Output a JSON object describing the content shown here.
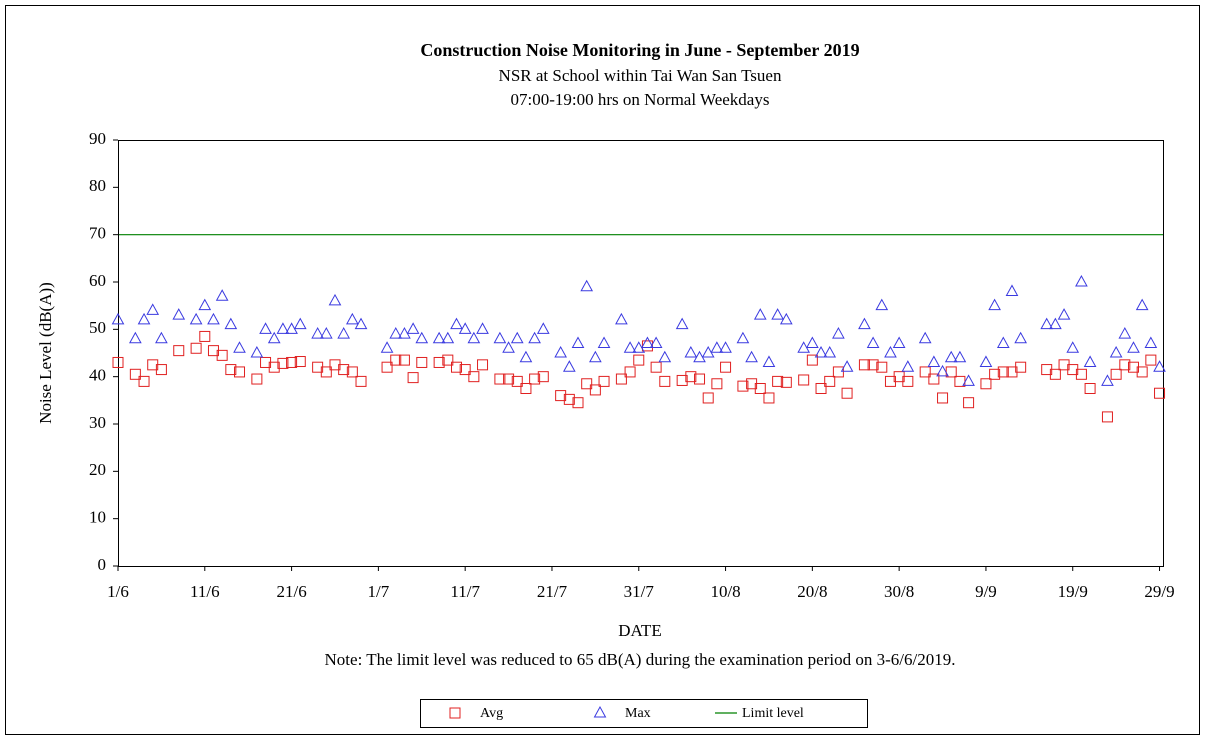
{
  "chart_data": {
    "type": "scatter",
    "title": "Construction  Noise Monitoring  in June - September 2019",
    "subtitle": [
      "NSR at School within Tai Wan San Tsuen",
      "07:00-19:00 hrs on Normal Weekdays"
    ],
    "x_label": "DATE",
    "y_label": "Noise Level (dB(A))",
    "note": "Note:  The limit level was reduced to 65 dB(A) during the examination period on 3-6/6/2019.",
    "xlim": [
      0,
      120.4
    ],
    "xticks": [
      {
        "value": 0,
        "label": "1/6"
      },
      {
        "value": 10,
        "label": "11/6"
      },
      {
        "value": 20,
        "label": "21/6"
      },
      {
        "value": 30,
        "label": "1/7"
      },
      {
        "value": 40,
        "label": "11/7"
      },
      {
        "value": 50,
        "label": "21/7"
      },
      {
        "value": 60,
        "label": "31/7"
      },
      {
        "value": 70,
        "label": "10/8"
      },
      {
        "value": 80,
        "label": "20/8"
      },
      {
        "value": 90,
        "label": "30/8"
      },
      {
        "value": 100,
        "label": "9/9"
      },
      {
        "value": 110,
        "label": "19/9"
      },
      {
        "value": 120,
        "label": "29/9"
      }
    ],
    "ylim": [
      0,
      90
    ],
    "yticks": [
      0,
      10,
      20,
      30,
      40,
      50,
      60,
      70,
      80,
      90
    ],
    "x": [
      0,
      2,
      3,
      4,
      5,
      7,
      9,
      10,
      11,
      12,
      13,
      14,
      16,
      17,
      18,
      19,
      20,
      21,
      23,
      24,
      25,
      26,
      27,
      28,
      31,
      32,
      33,
      34,
      35,
      37,
      38,
      39,
      40,
      41,
      42,
      44,
      45,
      46,
      47,
      48,
      49,
      51,
      52,
      53,
      54,
      55,
      56,
      58,
      59,
      60,
      61,
      62,
      63,
      65,
      66,
      67,
      68,
      69,
      70,
      72,
      73,
      74,
      75,
      76,
      77,
      79,
      80,
      81,
      82,
      83,
      84,
      86,
      87,
      88,
      89,
      90,
      91,
      93,
      94,
      95,
      96,
      97,
      98,
      100,
      101,
      102,
      103,
      104,
      107,
      108,
      109,
      110,
      111,
      112,
      114,
      115,
      116,
      117,
      118,
      119,
      120
    ],
    "series": [
      {
        "name": "Avg",
        "color": "#e02020",
        "marker": "square",
        "values": [
          43,
          40.5,
          39,
          42.5,
          41.5,
          45.5,
          46,
          48.5,
          45.5,
          44.5,
          41.5,
          41,
          39.5,
          43,
          42,
          42.8,
          43,
          43.2,
          42,
          41,
          42.5,
          41.5,
          41,
          39,
          42,
          43.5,
          43.5,
          39.8,
          43,
          43,
          43.5,
          42,
          41.5,
          40,
          42.5,
          39.5,
          39.5,
          39,
          37.5,
          39.5,
          40,
          36,
          35.2,
          34.5,
          38.5,
          37.2,
          39,
          39.5,
          41,
          43.5,
          46.5,
          42,
          39,
          39.2,
          40,
          39.5,
          35.5,
          38.5,
          42,
          38,
          38.5,
          37.5,
          35.5,
          39,
          38.8,
          39.3,
          43.5,
          37.5,
          39,
          41,
          36.5,
          42.5,
          42.5,
          42,
          39,
          40,
          39,
          41,
          39.5,
          35.5,
          41,
          39,
          34.5,
          38.5,
          40.5,
          41,
          41,
          42,
          41.5,
          40.5,
          42.5,
          41.5,
          40.5,
          37.5,
          31.5,
          40.5,
          42.5,
          42,
          41,
          43.5,
          36.5
        ]
      },
      {
        "name": "Max",
        "color": "#3a3ae0",
        "marker": "triangle",
        "values": [
          52,
          48,
          52,
          54,
          48,
          53,
          52,
          55,
          52,
          57,
          51,
          46,
          45,
          50,
          48,
          50,
          50,
          51,
          49,
          49,
          56,
          49,
          52,
          51,
          46,
          49,
          49,
          50,
          48,
          48,
          48,
          51,
          50,
          48,
          50,
          48,
          46,
          48,
          44,
          48,
          50,
          45,
          42,
          47,
          59,
          44,
          47,
          52,
          46,
          46,
          47,
          47,
          44,
          51,
          45,
          44,
          45,
          46,
          46,
          48,
          44,
          53,
          43,
          53,
          52,
          46,
          47,
          45,
          45,
          49,
          42,
          51,
          47,
          55,
          45,
          47,
          42,
          48,
          43,
          41,
          44,
          44,
          39,
          43,
          55,
          47,
          58,
          48,
          51,
          51,
          53,
          46,
          60,
          43,
          39,
          45,
          49,
          46,
          55,
          47,
          42
        ]
      }
    ],
    "reference_lines": [
      {
        "name": "Limit level",
        "y": 70,
        "color": "#008000"
      }
    ]
  }
}
